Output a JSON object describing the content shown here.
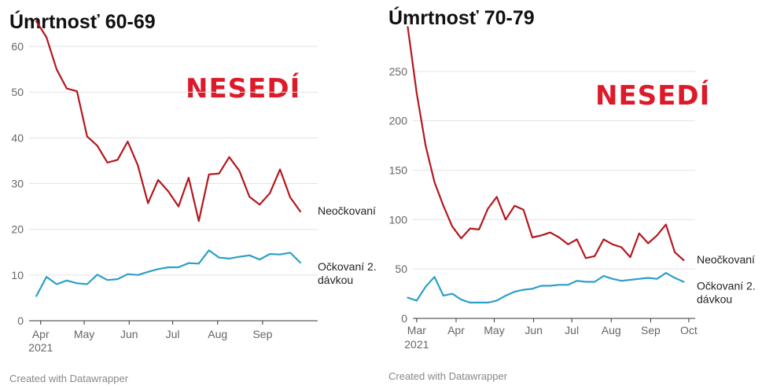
{
  "chart_data": [
    {
      "type": "line",
      "title": "Úmrtnosť 60-69",
      "annotation": "NESEDÍ",
      "xlim": [
        "2021-03-24",
        "2021-10-09"
      ],
      "ylim": [
        0,
        65
      ],
      "y_ticks": [
        0,
        10,
        20,
        30,
        40,
        50,
        60
      ],
      "x_ticks": [
        {
          "date": "2021-04-01",
          "label": "Apr",
          "sublabel": "2021"
        },
        {
          "date": "2021-05-01",
          "label": "May",
          "sublabel": ""
        },
        {
          "date": "2021-06-01",
          "label": "Jun",
          "sublabel": ""
        },
        {
          "date": "2021-07-01",
          "label": "Jul",
          "sublabel": ""
        },
        {
          "date": "2021-08-01",
          "label": "Aug",
          "sublabel": ""
        },
        {
          "date": "2021-09-01",
          "label": "Sep",
          "sublabel": ""
        }
      ],
      "grid": true,
      "credit": "Created with Datawrapper",
      "series": [
        {
          "name": "Neočkovaní",
          "color": "#b4171e",
          "points": [
            [
              "2021-03-29",
              65.5
            ],
            [
              "2021-04-05",
              62.0
            ],
            [
              "2021-04-12",
              55.0
            ],
            [
              "2021-04-19",
              50.8
            ],
            [
              "2021-04-26",
              50.2
            ],
            [
              "2021-05-03",
              40.3
            ],
            [
              "2021-05-10",
              38.3
            ],
            [
              "2021-05-17",
              34.6
            ],
            [
              "2021-05-24",
              35.2
            ],
            [
              "2021-05-31",
              39.2
            ],
            [
              "2021-06-07",
              34.0
            ],
            [
              "2021-06-14",
              25.7
            ],
            [
              "2021-06-21",
              30.8
            ],
            [
              "2021-06-28",
              28.3
            ],
            [
              "2021-07-05",
              25.0
            ],
            [
              "2021-07-12",
              31.3
            ],
            [
              "2021-07-19",
              21.8
            ],
            [
              "2021-07-26",
              32.0
            ],
            [
              "2021-08-02",
              32.2
            ],
            [
              "2021-08-09",
              35.8
            ],
            [
              "2021-08-16",
              32.8
            ],
            [
              "2021-08-23",
              27.1
            ],
            [
              "2021-08-30",
              25.4
            ],
            [
              "2021-09-06",
              27.9
            ],
            [
              "2021-09-13",
              33.1
            ],
            [
              "2021-09-20",
              27.0
            ],
            [
              "2021-09-27",
              23.9
            ]
          ]
        },
        {
          "name": "Očkovaní 2. dávkou",
          "label_lines": [
            "Očkovaní 2.",
            "dávkou"
          ],
          "color": "#2c9fc9",
          "points": [
            [
              "2021-03-29",
              5.4
            ],
            [
              "2021-04-05",
              9.6
            ],
            [
              "2021-04-12",
              8.0
            ],
            [
              "2021-04-19",
              8.8
            ],
            [
              "2021-04-26",
              8.2
            ],
            [
              "2021-05-03",
              8.0
            ],
            [
              "2021-05-10",
              10.1
            ],
            [
              "2021-05-17",
              8.9
            ],
            [
              "2021-05-24",
              9.1
            ],
            [
              "2021-05-31",
              10.2
            ],
            [
              "2021-06-07",
              10.0
            ],
            [
              "2021-06-14",
              10.7
            ],
            [
              "2021-06-21",
              11.3
            ],
            [
              "2021-06-28",
              11.7
            ],
            [
              "2021-07-05",
              11.7
            ],
            [
              "2021-07-12",
              12.6
            ],
            [
              "2021-07-19",
              12.5
            ],
            [
              "2021-07-26",
              15.4
            ],
            [
              "2021-08-02",
              13.8
            ],
            [
              "2021-08-09",
              13.6
            ],
            [
              "2021-08-16",
              14.0
            ],
            [
              "2021-08-23",
              14.3
            ],
            [
              "2021-08-30",
              13.4
            ],
            [
              "2021-09-06",
              14.6
            ],
            [
              "2021-09-13",
              14.5
            ],
            [
              "2021-09-20",
              14.9
            ],
            [
              "2021-09-27",
              12.7
            ]
          ]
        }
      ]
    },
    {
      "type": "line",
      "title": "Úmrtnosť 70-79",
      "annotation": "NESEDÍ",
      "xlim": [
        "2021-02-26",
        "2021-10-06"
      ],
      "ylim": [
        0,
        300
      ],
      "y_ticks": [
        0,
        50,
        100,
        150,
        200,
        250
      ],
      "x_ticks": [
        {
          "date": "2021-03-01",
          "label": "Mar",
          "sublabel": "2021"
        },
        {
          "date": "2021-04-01",
          "label": "Apr",
          "sublabel": ""
        },
        {
          "date": "2021-05-01",
          "label": "May",
          "sublabel": ""
        },
        {
          "date": "2021-06-01",
          "label": "Jun",
          "sublabel": ""
        },
        {
          "date": "2021-07-01",
          "label": "Jul",
          "sublabel": ""
        },
        {
          "date": "2021-08-01",
          "label": "Aug",
          "sublabel": ""
        },
        {
          "date": "2021-09-01",
          "label": "Sep",
          "sublabel": ""
        },
        {
          "date": "2021-10-01",
          "label": "Oct",
          "sublabel": ""
        }
      ],
      "grid": true,
      "credit": "Created with Datawrapper",
      "series": [
        {
          "name": "Neočkovaní",
          "color": "#b4171e",
          "points": [
            [
              "2021-02-22",
              295
            ],
            [
              "2021-03-01",
              228
            ],
            [
              "2021-03-08",
              175
            ],
            [
              "2021-03-15",
              138
            ],
            [
              "2021-03-22",
              114
            ],
            [
              "2021-03-29",
              93
            ],
            [
              "2021-04-05",
              81
            ],
            [
              "2021-04-12",
              91
            ],
            [
              "2021-04-19",
              90
            ],
            [
              "2021-04-26",
              111
            ],
            [
              "2021-05-03",
              123
            ],
            [
              "2021-05-10",
              100
            ],
            [
              "2021-05-17",
              114
            ],
            [
              "2021-05-24",
              110
            ],
            [
              "2021-05-31",
              82
            ],
            [
              "2021-06-07",
              84
            ],
            [
              "2021-06-14",
              87
            ],
            [
              "2021-06-21",
              82
            ],
            [
              "2021-06-28",
              75
            ],
            [
              "2021-07-05",
              80
            ],
            [
              "2021-07-12",
              61
            ],
            [
              "2021-07-19",
              63
            ],
            [
              "2021-07-26",
              80
            ],
            [
              "2021-08-02",
              75
            ],
            [
              "2021-08-09",
              72
            ],
            [
              "2021-08-16",
              62
            ],
            [
              "2021-08-23",
              86
            ],
            [
              "2021-08-30",
              76
            ],
            [
              "2021-09-06",
              84
            ],
            [
              "2021-09-13",
              95
            ],
            [
              "2021-09-20",
              67
            ],
            [
              "2021-09-27",
              59
            ]
          ]
        },
        {
          "name": "Očkovaní 2. dávkou",
          "label_lines": [
            "Očkovaní 2.",
            "dávkou"
          ],
          "color": "#2c9fc9",
          "points": [
            [
              "2021-02-22",
              21
            ],
            [
              "2021-03-01",
              18
            ],
            [
              "2021-03-08",
              32
            ],
            [
              "2021-03-15",
              42
            ],
            [
              "2021-03-22",
              23
            ],
            [
              "2021-03-29",
              25
            ],
            [
              "2021-04-05",
              19
            ],
            [
              "2021-04-12",
              16
            ],
            [
              "2021-04-19",
              16
            ],
            [
              "2021-04-26",
              16
            ],
            [
              "2021-05-03",
              18
            ],
            [
              "2021-05-10",
              23
            ],
            [
              "2021-05-17",
              27
            ],
            [
              "2021-05-24",
              29
            ],
            [
              "2021-05-31",
              30
            ],
            [
              "2021-06-07",
              33
            ],
            [
              "2021-06-14",
              33
            ],
            [
              "2021-06-21",
              34
            ],
            [
              "2021-06-28",
              34
            ],
            [
              "2021-07-05",
              38
            ],
            [
              "2021-07-12",
              37
            ],
            [
              "2021-07-19",
              37
            ],
            [
              "2021-07-26",
              43
            ],
            [
              "2021-08-02",
              40
            ],
            [
              "2021-08-09",
              38
            ],
            [
              "2021-08-16",
              39
            ],
            [
              "2021-08-23",
              40
            ],
            [
              "2021-08-30",
              41
            ],
            [
              "2021-09-06",
              40
            ],
            [
              "2021-09-13",
              46
            ],
            [
              "2021-09-20",
              41
            ],
            [
              "2021-09-27",
              37
            ]
          ]
        }
      ]
    }
  ]
}
